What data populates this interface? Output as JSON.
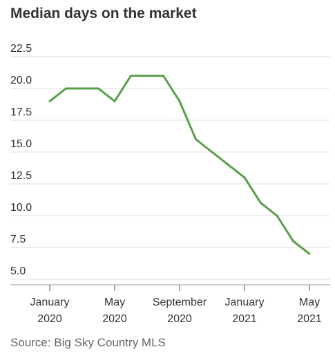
{
  "title": "Median days on the market",
  "source": "Source: Big Sky Country MLS",
  "colors": {
    "line": "#5a9e4b",
    "grid": "#dddddd",
    "axis": "#999999",
    "text": "#333333"
  },
  "chart_data": {
    "type": "line",
    "title": "Median days on the market",
    "xlabel": "",
    "ylabel": "",
    "ylim": [
      5.0,
      22.5
    ],
    "yticks": [
      "22.5",
      "20.0",
      "17.5",
      "15.0",
      "12.5",
      "10.0",
      "7.5",
      "5.0"
    ],
    "x_ticks": [
      {
        "month": "January",
        "year": "2020"
      },
      {
        "month": "May",
        "year": "2020"
      },
      {
        "month": "September",
        "year": "2020"
      },
      {
        "month": "January",
        "year": "2021"
      },
      {
        "month": "May",
        "year": "2021"
      }
    ],
    "grid": true,
    "series": [
      {
        "x": [
          "2020-01",
          "2020-02",
          "2020-03",
          "2020-04",
          "2020-05",
          "2020-06",
          "2020-07",
          "2020-08",
          "2020-09",
          "2020-10",
          "2020-11",
          "2020-12",
          "2021-01",
          "2021-02",
          "2021-03",
          "2021-04",
          "2021-05"
        ],
        "values": [
          19,
          20,
          20,
          20,
          19,
          21,
          21,
          21,
          19,
          16,
          15,
          14,
          13,
          11,
          10,
          8,
          7
        ]
      }
    ]
  }
}
